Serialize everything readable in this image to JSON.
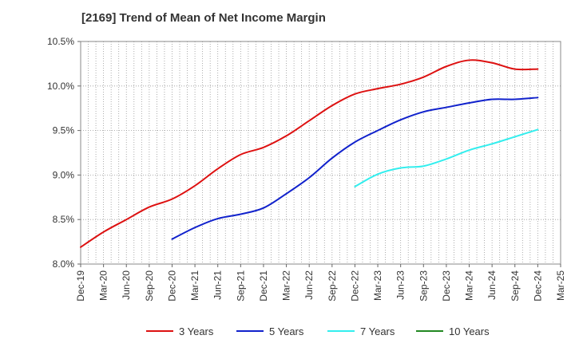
{
  "chart_data": {
    "type": "line",
    "title": "[2169]  Trend of Mean of Net Income Margin",
    "xlabel": "",
    "ylabel": "",
    "x_ticks": [
      "Dec-19",
      "Mar-20",
      "Jun-20",
      "Sep-20",
      "Dec-20",
      "Mar-21",
      "Jun-21",
      "Sep-21",
      "Dec-21",
      "Mar-22",
      "Jun-22",
      "Sep-22",
      "Dec-22",
      "Mar-23",
      "Jun-23",
      "Sep-23",
      "Dec-23",
      "Mar-24",
      "Jun-24",
      "Sep-24",
      "Dec-24",
      "Mar-25"
    ],
    "y_ticks": [
      "8.0%",
      "8.5%",
      "9.0%",
      "9.5%",
      "10.0%",
      "10.5%"
    ],
    "ylim": [
      8.0,
      10.5
    ],
    "y_unit": "%",
    "grid": "vertical-dotted",
    "legend_position": "bottom-center",
    "series": [
      {
        "name": "3 Years",
        "color": "#dd1111",
        "x": [
          "Dec-19",
          "Mar-20",
          "Jun-20",
          "Sep-20",
          "Dec-20",
          "Mar-21",
          "Jun-21",
          "Sep-21",
          "Dec-21",
          "Mar-22",
          "Jun-22",
          "Sep-22",
          "Dec-22",
          "Mar-23",
          "Jun-23",
          "Sep-23",
          "Dec-23",
          "Mar-24",
          "Jun-24",
          "Sep-24",
          "Dec-24"
        ],
        "values": [
          8.19,
          8.36,
          8.5,
          8.64,
          8.73,
          8.88,
          9.07,
          9.23,
          9.31,
          9.44,
          9.61,
          9.78,
          9.91,
          9.97,
          10.02,
          10.1,
          10.22,
          10.29,
          10.26,
          10.19,
          10.19
        ]
      },
      {
        "name": "5 Years",
        "color": "#1122cc",
        "x": [
          "Dec-20",
          "Mar-21",
          "Jun-21",
          "Sep-21",
          "Dec-21",
          "Mar-22",
          "Jun-22",
          "Sep-22",
          "Dec-22",
          "Mar-23",
          "Jun-23",
          "Sep-23",
          "Dec-23",
          "Mar-24",
          "Jun-24",
          "Sep-24",
          "Dec-24"
        ],
        "values": [
          8.28,
          8.41,
          8.51,
          8.56,
          8.63,
          8.79,
          8.97,
          9.19,
          9.37,
          9.5,
          9.62,
          9.71,
          9.76,
          9.81,
          9.85,
          9.85,
          9.87
        ]
      },
      {
        "name": "7 Years",
        "color": "#33eeee",
        "x": [
          "Dec-22",
          "Mar-23",
          "Jun-23",
          "Sep-23",
          "Dec-23",
          "Mar-24",
          "Jun-24",
          "Sep-24",
          "Dec-24"
        ],
        "values": [
          8.87,
          9.01,
          9.08,
          9.1,
          9.18,
          9.28,
          9.35,
          9.43,
          9.51
        ]
      },
      {
        "name": "10 Years",
        "color": "#228822",
        "x": [],
        "values": []
      }
    ]
  }
}
